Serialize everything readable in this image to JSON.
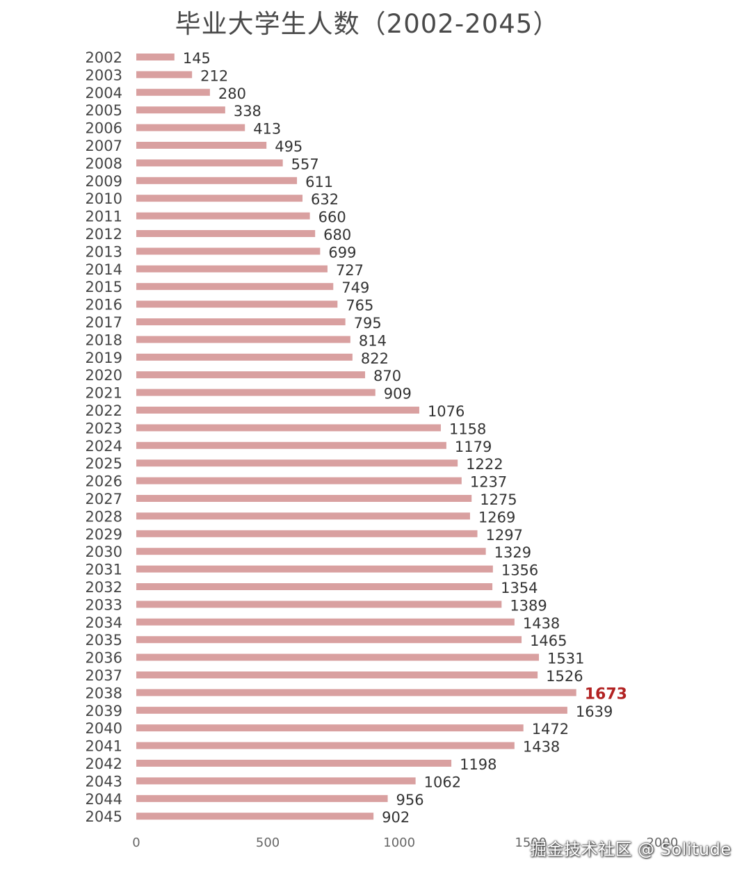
{
  "chart_data": {
    "type": "bar",
    "orientation": "horizontal",
    "title": "毕业大学生人数（2002-2045）",
    "categories": [
      "2002",
      "2003",
      "2004",
      "2005",
      "2006",
      "2007",
      "2008",
      "2009",
      "2010",
      "2011",
      "2012",
      "2013",
      "2014",
      "2015",
      "2016",
      "2017",
      "2018",
      "2019",
      "2020",
      "2021",
      "2022",
      "2023",
      "2024",
      "2025",
      "2026",
      "2027",
      "2028",
      "2029",
      "2030",
      "2031",
      "2032",
      "2033",
      "2034",
      "2035",
      "2036",
      "2037",
      "2038",
      "2039",
      "2040",
      "2041",
      "2042",
      "2043",
      "2044",
      "2045"
    ],
    "values": [
      145,
      212,
      280,
      338,
      413,
      495,
      557,
      611,
      632,
      660,
      680,
      699,
      727,
      749,
      765,
      795,
      814,
      822,
      870,
      909,
      1076,
      1158,
      1179,
      1222,
      1237,
      1275,
      1269,
      1297,
      1329,
      1356,
      1354,
      1389,
      1438,
      1465,
      1531,
      1526,
      1673,
      1639,
      1472,
      1438,
      1198,
      1062,
      956,
      902
    ],
    "xlim": [
      0,
      2000
    ],
    "x_ticks": [
      "0",
      "500",
      "1000",
      "1500",
      "2000"
    ],
    "highlight": {
      "category": "2038",
      "color": "#b22222"
    },
    "bar_color": "#d9a0a0",
    "label_color": "#333333",
    "grid": false,
    "legend": "none"
  },
  "watermark": "掘金技术社区 @ Solitude"
}
